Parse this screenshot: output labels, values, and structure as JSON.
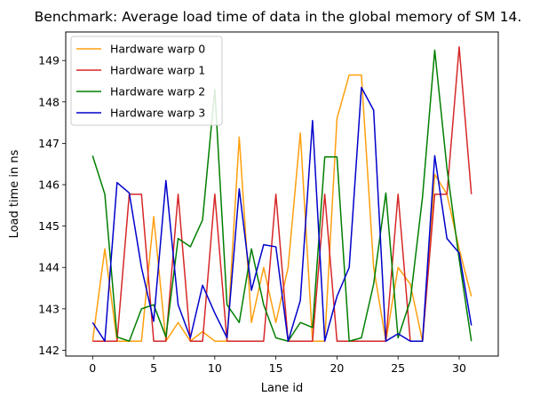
{
  "chart_data": {
    "type": "line",
    "title": "Benchmark: Average load time of data in the global memory of SM 14.",
    "xlabel": "Lane id",
    "ylabel": "Load time in ns",
    "xlim": [
      -2.2,
      33.2
    ],
    "ylim": [
      141.86,
      149.69
    ],
    "xticks": [
      0,
      5,
      10,
      15,
      20,
      25,
      30
    ],
    "yticks": [
      142,
      143,
      144,
      145,
      146,
      147,
      148,
      149
    ],
    "grid": false,
    "legend_position": "top-left",
    "x": [
      0,
      1,
      2,
      3,
      4,
      5,
      6,
      7,
      8,
      9,
      10,
      11,
      12,
      13,
      14,
      15,
      16,
      17,
      18,
      19,
      20,
      21,
      22,
      23,
      24,
      25,
      26,
      27,
      28,
      29,
      30,
      31
    ],
    "series": [
      {
        "name": "Hardware warp 0",
        "color": "#ff9f0e",
        "values": [
          142.22,
          144.45,
          142.22,
          142.22,
          142.22,
          145.23,
          142.22,
          142.67,
          142.22,
          142.45,
          142.22,
          142.22,
          147.15,
          142.67,
          144.0,
          142.67,
          144.0,
          147.25,
          142.22,
          142.22,
          147.6,
          148.65,
          148.65,
          144.0,
          142.22,
          144.0,
          143.6,
          142.22,
          146.25,
          145.77,
          144.45,
          143.3
        ]
      },
      {
        "name": "Hardware warp 1",
        "color": "#d62728",
        "values": [
          142.22,
          142.22,
          142.22,
          145.77,
          145.77,
          142.22,
          142.22,
          145.77,
          142.22,
          142.22,
          145.77,
          142.22,
          142.22,
          142.22,
          142.22,
          145.77,
          142.22,
          142.22,
          142.22,
          145.77,
          142.22,
          142.22,
          142.22,
          142.22,
          142.22,
          145.77,
          142.22,
          142.22,
          145.77,
          145.77,
          149.33,
          145.77
        ]
      },
      {
        "name": "Hardware warp 2",
        "color": "#007f00",
        "values": [
          146.7,
          145.77,
          142.32,
          142.22,
          143.0,
          143.1,
          142.32,
          144.7,
          144.5,
          145.15,
          148.3,
          143.1,
          142.67,
          144.45,
          143.1,
          142.3,
          142.22,
          142.67,
          142.55,
          146.67,
          146.67,
          142.22,
          142.3,
          143.6,
          145.8,
          142.3,
          143.2,
          145.7,
          149.25,
          146.4,
          144.2,
          142.22
        ]
      },
      {
        "name": "Hardware warp 3",
        "color": "#0000cc",
        "values": [
          142.67,
          142.22,
          146.05,
          145.8,
          144.0,
          142.7,
          146.1,
          143.1,
          142.3,
          143.57,
          142.9,
          142.3,
          145.9,
          143.45,
          144.55,
          144.5,
          142.22,
          143.2,
          147.55,
          142.22,
          143.3,
          144.0,
          148.35,
          147.8,
          142.22,
          142.4,
          142.22,
          142.22,
          146.7,
          144.7,
          144.35,
          142.6
        ]
      }
    ]
  }
}
